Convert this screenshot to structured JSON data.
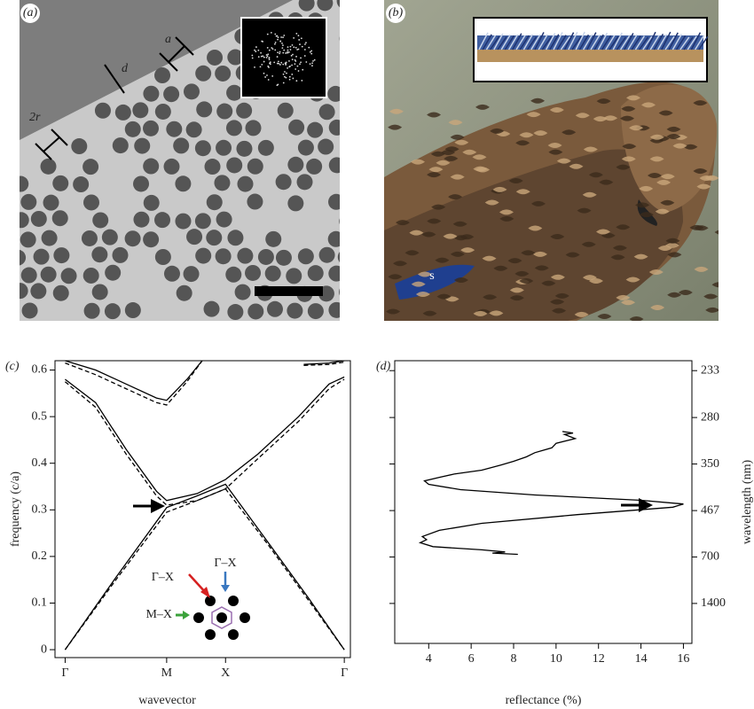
{
  "panels": {
    "a": {
      "label": "(a)",
      "annotations": [
        "a",
        "d",
        "2r"
      ]
    },
    "b": {
      "label": "(b)",
      "annotations": [
        "s"
      ]
    }
  },
  "chart_data": [
    {
      "type": "line",
      "label": "(c)",
      "xlabel": "wavevector",
      "ylabel": "frequency (c/a)",
      "xlim": [
        -0.1,
        2.81
      ],
      "ylim": [
        -0.017,
        0.62
      ],
      "xticks": [
        {
          "value": 0,
          "label": "Γ"
        },
        {
          "value": 1,
          "label": "M"
        },
        {
          "value": 1.58,
          "label": "X"
        },
        {
          "value": 2.75,
          "label": "Γ"
        }
      ],
      "yticks": [
        0,
        0.1,
        0.2,
        0.3,
        0.4,
        0.5,
        0.6
      ],
      "series": [
        {
          "style": "solid",
          "color": "#000",
          "x": [
            0,
            0.5,
            1,
            1.3,
            1.58,
            2.0,
            2.4,
            2.75
          ],
          "values": [
            0,
            0.155,
            0.305,
            0.33,
            0.355,
            0.23,
            0.11,
            0
          ]
        },
        {
          "style": "solid",
          "color": "#000",
          "x": [
            0,
            0.3,
            0.6,
            0.9,
            1,
            1.3,
            1.58,
            1.9,
            2.3,
            2.6,
            2.75
          ],
          "values": [
            0.58,
            0.53,
            0.43,
            0.34,
            0.32,
            0.335,
            0.365,
            0.42,
            0.5,
            0.57,
            0.585
          ]
        },
        {
          "style": "solid",
          "color": "#000",
          "x": [
            0,
            0.3,
            0.6,
            0.9,
            1,
            1.2,
            1.35
          ],
          "values": [
            0.62,
            0.6,
            0.57,
            0.54,
            0.535,
            0.58,
            0.62
          ]
        },
        {
          "style": "solid",
          "color": "#000",
          "x": [
            2.35,
            2.6,
            2.75
          ],
          "values": [
            0.612,
            0.615,
            0.62
          ]
        },
        {
          "style": "dashed",
          "color": "#000",
          "x": [
            0,
            0.5,
            1,
            1.3,
            1.58,
            2.0,
            2.4,
            2.75
          ],
          "values": [
            0,
            0.15,
            0.295,
            0.32,
            0.345,
            0.225,
            0.105,
            0
          ]
        },
        {
          "style": "dashed",
          "color": "#000",
          "x": [
            0,
            0.3,
            0.6,
            0.9,
            1,
            1.3,
            1.58,
            1.9,
            2.3,
            2.6,
            2.75
          ],
          "values": [
            0.575,
            0.52,
            0.42,
            0.33,
            0.31,
            0.32,
            0.345,
            0.41,
            0.49,
            0.56,
            0.58
          ]
        },
        {
          "style": "dashed",
          "color": "#000",
          "x": [
            0,
            0.3,
            0.6,
            0.9,
            1,
            1.2,
            1.35
          ],
          "values": [
            0.615,
            0.59,
            0.56,
            0.53,
            0.525,
            0.575,
            0.62
          ]
        },
        {
          "style": "dashed",
          "color": "#000",
          "x": [
            2.35,
            2.6,
            2.75
          ],
          "values": [
            0.61,
            0.612,
            0.617
          ]
        }
      ],
      "annotations": [
        "Γ–X",
        "Γ–X",
        "M–X"
      ]
    },
    {
      "type": "line",
      "label": "(d)",
      "xlabel": "reflectance (%)",
      "ylabel": "wavelength (nm)",
      "xlim": [
        2.4,
        16.4
      ],
      "xticks": [
        4,
        6,
        8,
        10,
        12,
        14,
        16
      ],
      "ylim": [
        225,
        10000
      ],
      "yscale": "reciprocal",
      "yticks": [
        233,
        280,
        350,
        467,
        700,
        1400
      ],
      "series": [
        {
          "style": "solid",
          "color": "#000",
          "x": [
            8.2,
            7.0,
            7.6,
            6.5,
            4.2,
            3.6,
            3.9,
            3.7,
            4.5,
            6.5,
            11,
            15.5,
            16,
            14,
            9,
            5.5,
            4,
            3.8,
            4.5,
            5.2,
            6.5,
            7.4,
            8,
            8.6,
            9,
            9.8,
            10,
            10.9,
            10.4,
            10.8,
            10.3
          ],
          "values": [
            681,
            672,
            664,
            650,
            630,
            607,
            590,
            574,
            544,
            514,
            481,
            456,
            446,
            435,
            420,
            406,
            393,
            385,
            377,
            370,
            362,
            352,
            345,
            337,
            330,
            322,
            315,
            308,
            302,
            300,
            298
          ]
        }
      ]
    }
  ]
}
